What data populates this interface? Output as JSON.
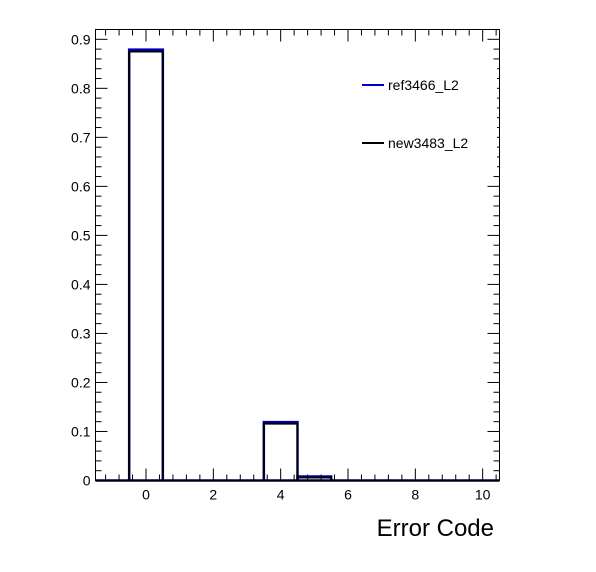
{
  "chart_data": {
    "type": "histogram",
    "title": "",
    "xlabel": "Error Code",
    "ylabel": "",
    "xlim": [
      -1.5,
      10.5
    ],
    "ylim": [
      0,
      0.92
    ],
    "grid": false,
    "legend_position": "top-right",
    "x_ticks": [
      0,
      2,
      4,
      6,
      8,
      10
    ],
    "y_ticks": [
      0,
      0.1,
      0.2,
      0.3,
      0.4,
      0.5,
      0.6,
      0.7,
      0.8,
      0.9
    ],
    "bin_edges": [
      -1.5,
      -0.5,
      0.5,
      1.5,
      2.5,
      3.5,
      4.5,
      5.5,
      6.5,
      7.5,
      8.5,
      9.5,
      10.5
    ],
    "series": [
      {
        "name": "ref3466_L2",
        "color": "#0000cc",
        "values": [
          0,
          0.877,
          0,
          0,
          0,
          0.117,
          0.006,
          0,
          0,
          0,
          0,
          0
        ]
      },
      {
        "name": "new3483_L2",
        "color": "#000000",
        "values": [
          0,
          0.875,
          0,
          0,
          0,
          0.116,
          0.006,
          0,
          0,
          0,
          0,
          0
        ]
      }
    ]
  }
}
